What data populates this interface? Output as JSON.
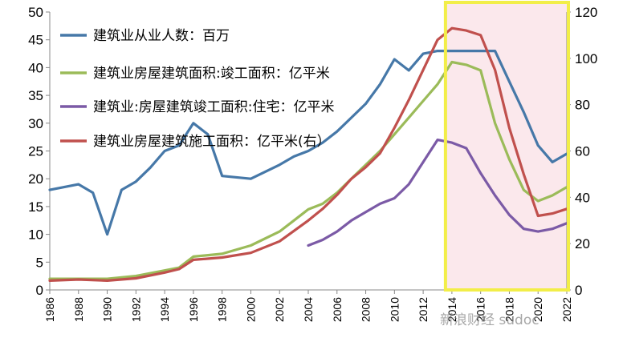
{
  "chart_data": {
    "type": "line",
    "title": "",
    "xlabel": "",
    "ylabel": "",
    "y_left": {
      "lim": [
        0,
        50
      ],
      "ticks": [
        0,
        5,
        10,
        15,
        20,
        25,
        30,
        35,
        40,
        45,
        50
      ]
    },
    "y_right": {
      "lim": [
        0,
        120
      ],
      "ticks": [
        0,
        20,
        40,
        60,
        80,
        100,
        120
      ]
    },
    "x_ticks": [
      1986,
      1988,
      1990,
      1992,
      1994,
      1996,
      1998,
      2000,
      2002,
      2004,
      2006,
      2008,
      2010,
      2012,
      2014,
      2016,
      2018,
      2020,
      2022
    ],
    "x_range": [
      1986,
      2022
    ],
    "highlight": {
      "from": 2014,
      "to": 2022,
      "fill": "#fbe8ec",
      "border": "#f2ee48"
    },
    "legend_position": "top-left",
    "grid": false,
    "series": [
      {
        "name": "建筑业从业人数：百万",
        "color": "#4678a8",
        "axis": "left",
        "x": [
          1986,
          1988,
          1989,
          1990,
          1991,
          1992,
          1993,
          1994,
          1995,
          1996,
          1997,
          1998,
          2000,
          2002,
          2003,
          2004,
          2005,
          2006,
          2007,
          2008,
          2009,
          2010,
          2011,
          2012,
          2013,
          2014,
          2015,
          2016,
          2017,
          2018,
          2019,
          2020,
          2021,
          2022
        ],
        "values": [
          18,
          19,
          17.5,
          10,
          18,
          19.5,
          22,
          25,
          26,
          30,
          28,
          20.5,
          20,
          22.5,
          24,
          25,
          26.5,
          28.5,
          31,
          33.5,
          37,
          41.5,
          39.5,
          42.5,
          43,
          43,
          43,
          43,
          43,
          37.5,
          32,
          26,
          23,
          24.5
        ]
      },
      {
        "name": "建筑业房屋建筑面积:竣工面积：亿平米",
        "color": "#9bbb59",
        "axis": "left",
        "x": [
          1986,
          1988,
          1990,
          1992,
          1994,
          1995,
          1996,
          1998,
          2000,
          2002,
          2003,
          2004,
          2005,
          2006,
          2007,
          2008,
          2009,
          2010,
          2011,
          2012,
          2013,
          2014,
          2015,
          2016,
          2017,
          2018,
          2019,
          2020,
          2021,
          2022
        ],
        "values": [
          2,
          2,
          2,
          2.5,
          3.5,
          4,
          6,
          6.5,
          8,
          10.5,
          12.5,
          14.5,
          15.5,
          17.5,
          20,
          22.5,
          25,
          28,
          31,
          34,
          37,
          41,
          40.5,
          39.5,
          30,
          23.5,
          18,
          16,
          17,
          18.5
        ]
      },
      {
        "name": "建筑业:房屋建筑竣工面积:住宅：亿平米",
        "color": "#7b5aa6",
        "axis": "left",
        "x": [
          2004,
          2005,
          2006,
          2007,
          2008,
          2009,
          2010,
          2011,
          2012,
          2013,
          2014,
          2015,
          2016,
          2017,
          2018,
          2019,
          2020,
          2021,
          2022
        ],
        "values": [
          8,
          9,
          10.5,
          12.5,
          14,
          15.5,
          16.5,
          19,
          23,
          27,
          26.5,
          25.5,
          21,
          17,
          13.5,
          11,
          10.5,
          11,
          12
        ]
      },
      {
        "name": "建筑业房屋建筑施工面积：亿平米(右）",
        "color": "#c0504d",
        "axis": "right",
        "x": [
          1986,
          1988,
          1990,
          1992,
          1994,
          1995,
          1996,
          1998,
          2000,
          2002,
          2003,
          2004,
          2005,
          2006,
          2007,
          2008,
          2009,
          2010,
          2011,
          2012,
          2013,
          2014,
          2015,
          2016,
          2017,
          2018,
          2019,
          2020,
          2021,
          2022
        ],
        "values": [
          4,
          4.5,
          4,
          5,
          7.5,
          9,
          13,
          14,
          16,
          21,
          25.5,
          30,
          35,
          41,
          48,
          53,
          59,
          70,
          82,
          95,
          108,
          113,
          112,
          110,
          95,
          70,
          50,
          32,
          33,
          35
        ]
      }
    ]
  },
  "watermark": "新浪财经 sudoc"
}
